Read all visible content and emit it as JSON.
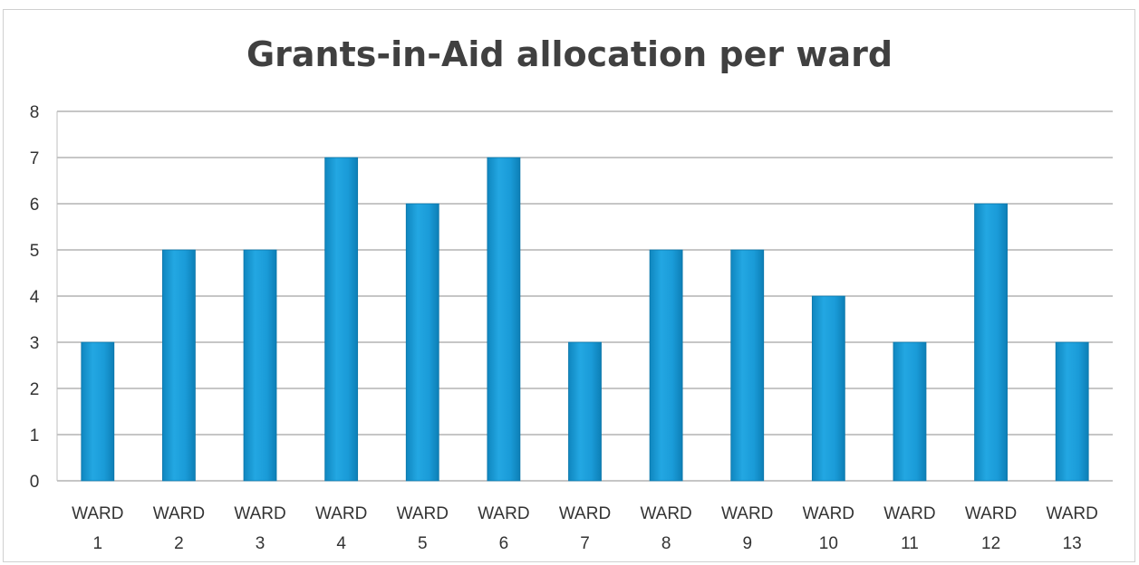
{
  "chart_data": {
    "type": "bar",
    "title": "Grants-in-Aid allocation per ward",
    "xlabel": "",
    "ylabel": "",
    "categories": [
      [
        "WARD",
        "1"
      ],
      [
        "WARD",
        "2"
      ],
      [
        "WARD",
        "3"
      ],
      [
        "WARD",
        "4"
      ],
      [
        "WARD",
        "5"
      ],
      [
        "WARD",
        "6"
      ],
      [
        "WARD",
        "7"
      ],
      [
        "WARD",
        "8"
      ],
      [
        "WARD",
        "9"
      ],
      [
        "WARD",
        "10"
      ],
      [
        "WARD",
        "11"
      ],
      [
        "WARD",
        "12"
      ],
      [
        "WARD",
        "13"
      ]
    ],
    "values": [
      3,
      5,
      5,
      7,
      6,
      7,
      3,
      5,
      5,
      4,
      3,
      6,
      3
    ],
    "ylim": [
      0,
      8
    ],
    "yticks": [
      "0",
      "1",
      "2",
      "3",
      "4",
      "5",
      "6",
      "7",
      "8"
    ],
    "grid": true,
    "legend": "none",
    "bar_color": "#1a9bd8",
    "grid_color": "#8c8c8c"
  }
}
